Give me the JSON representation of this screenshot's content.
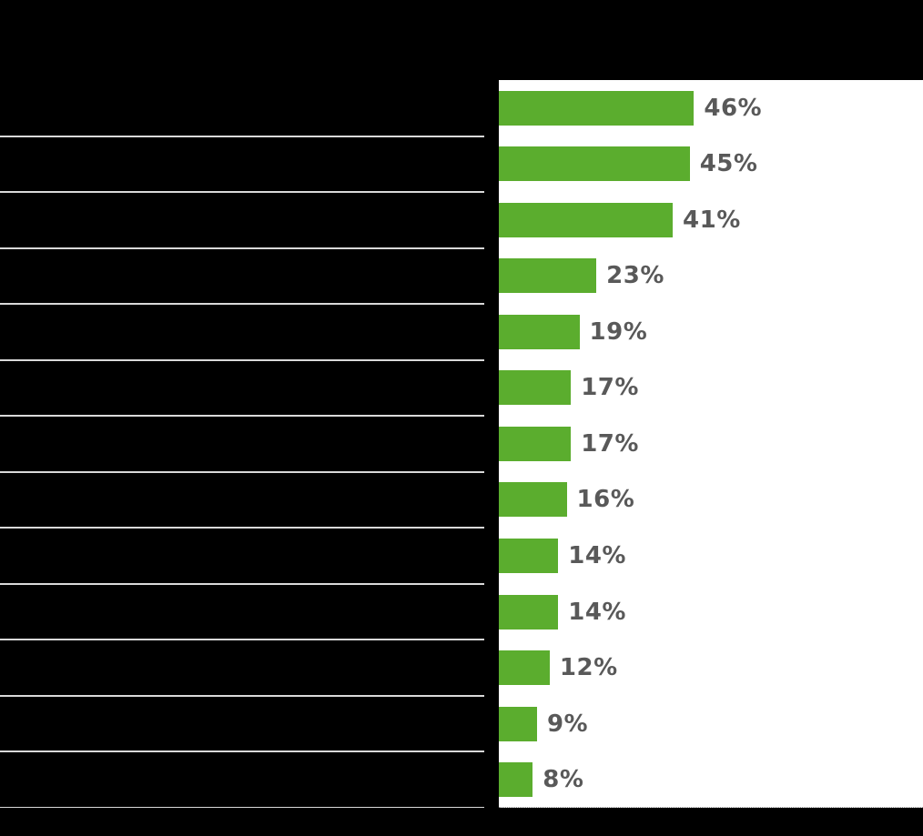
{
  "chart_data": {
    "type": "bar",
    "orientation": "horizontal",
    "title": "",
    "xlabel": "",
    "ylabel": "",
    "xlim": [
      0,
      100
    ],
    "grid": false,
    "legend": "none",
    "categories": [
      "",
      "",
      "",
      "",
      "",
      "",
      "",
      "",
      "",
      "",
      "",
      "",
      ""
    ],
    "values": [
      46,
      45,
      41,
      23,
      19,
      17,
      17,
      16,
      14,
      14,
      12,
      9,
      8
    ],
    "value_labels": [
      "46%",
      "45%",
      "41%",
      "23%",
      "19%",
      "17%",
      "17%",
      "16%",
      "14%",
      "14%",
      "12%",
      "9%",
      "8%"
    ],
    "bar_color": "#5bad2e",
    "value_label_color": "#595959",
    "plot_background_color": "#ffffff",
    "page_background_color": "#000000",
    "separator_line_color": "#d9d9d9"
  }
}
